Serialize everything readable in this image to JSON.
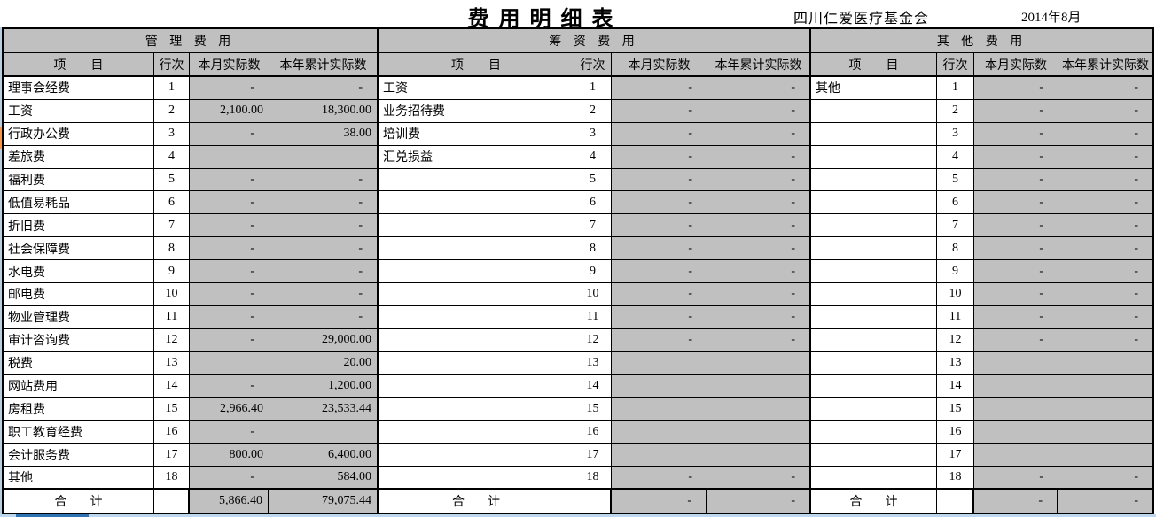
{
  "header": {
    "title": "费用明细表",
    "org": "四川仁爱医疗基金会",
    "period": "2014年8月"
  },
  "columns": {
    "item": "项　　目",
    "line": "行次",
    "month": "本月实际数",
    "ytd": "本年累计实际数"
  },
  "total_label": "合计",
  "colors": {
    "cell_gray": "#c0c0c0",
    "border_black": "#000000",
    "marker_orange": "#f79646",
    "edge_light_blue": "#b7cde4",
    "edge_bottom_blue": "#2e74b5"
  },
  "sections": [
    {
      "name": "管 理 费 用",
      "rows": [
        {
          "item": "理事会经费",
          "line": "1",
          "month": "-",
          "ytd": "-"
        },
        {
          "item": "工资",
          "line": "2",
          "month": "2,100.00",
          "ytd": "18,300.00"
        },
        {
          "item": "行政办公费",
          "line": "3",
          "month": "-",
          "ytd": "38.00"
        },
        {
          "item": "差旅费",
          "line": "4",
          "month": "",
          "ytd": ""
        },
        {
          "item": "福利费",
          "line": "5",
          "month": "-",
          "ytd": "-"
        },
        {
          "item": "低值易耗品",
          "line": "6",
          "month": "-",
          "ytd": "-"
        },
        {
          "item": "折旧费",
          "line": "7",
          "month": "-",
          "ytd": "-"
        },
        {
          "item": "社会保障费",
          "line": "8",
          "month": "-",
          "ytd": "-"
        },
        {
          "item": "水电费",
          "line": "9",
          "month": "-",
          "ytd": "-"
        },
        {
          "item": "邮电费",
          "line": "10",
          "month": "-",
          "ytd": "-"
        },
        {
          "item": "物业管理费",
          "line": "11",
          "month": "-",
          "ytd": "-"
        },
        {
          "item": "审计咨询费",
          "line": "12",
          "month": "-",
          "ytd": "29,000.00"
        },
        {
          "item": "税费",
          "line": "13",
          "month": "",
          "ytd": "20.00"
        },
        {
          "item": "网站费用",
          "line": "14",
          "month": "-",
          "ytd": "1,200.00"
        },
        {
          "item": "房租费",
          "line": "15",
          "month": "2,966.40",
          "ytd": "23,533.44"
        },
        {
          "item": "职工教育经费",
          "line": "16",
          "month": "-",
          "ytd": ""
        },
        {
          "item": "会计服务费",
          "line": "17",
          "month": "800.00",
          "ytd": "6,400.00"
        },
        {
          "item": "其他",
          "line": "18",
          "month": "-",
          "ytd": "584.00"
        }
      ],
      "total": {
        "month": "5,866.40",
        "ytd": "79,075.44"
      }
    },
    {
      "name": "筹 资 费 用",
      "rows": [
        {
          "item": "工资",
          "line": "1",
          "month": "-",
          "ytd": "-"
        },
        {
          "item": "业务招待费",
          "line": "2",
          "month": "-",
          "ytd": "-"
        },
        {
          "item": "培训费",
          "line": "3",
          "month": "-",
          "ytd": "-"
        },
        {
          "item": "汇兑损益",
          "line": "4",
          "month": "-",
          "ytd": "-"
        },
        {
          "item": "",
          "line": "5",
          "month": "-",
          "ytd": "-"
        },
        {
          "item": "",
          "line": "6",
          "month": "-",
          "ytd": "-"
        },
        {
          "item": "",
          "line": "7",
          "month": "-",
          "ytd": "-"
        },
        {
          "item": "",
          "line": "8",
          "month": "-",
          "ytd": "-"
        },
        {
          "item": "",
          "line": "9",
          "month": "-",
          "ytd": "-"
        },
        {
          "item": "",
          "line": "10",
          "month": "-",
          "ytd": "-"
        },
        {
          "item": "",
          "line": "11",
          "month": "-",
          "ytd": "-"
        },
        {
          "item": "",
          "line": "12",
          "month": "-",
          "ytd": "-"
        },
        {
          "item": "",
          "line": "13",
          "month": "",
          "ytd": ""
        },
        {
          "item": "",
          "line": "14",
          "month": "",
          "ytd": ""
        },
        {
          "item": "",
          "line": "15",
          "month": "",
          "ytd": ""
        },
        {
          "item": "",
          "line": "16",
          "month": "",
          "ytd": ""
        },
        {
          "item": "",
          "line": "17",
          "month": "",
          "ytd": ""
        },
        {
          "item": "",
          "line": "18",
          "month": "-",
          "ytd": "-"
        }
      ],
      "total": {
        "month": "-",
        "ytd": "-"
      }
    },
    {
      "name": "其 他 费 用",
      "rows": [
        {
          "item": "其他",
          "line": "1",
          "month": "-",
          "ytd": "-"
        },
        {
          "item": "",
          "line": "2",
          "month": "-",
          "ytd": "-"
        },
        {
          "item": "",
          "line": "3",
          "month": "-",
          "ytd": "-"
        },
        {
          "item": "",
          "line": "4",
          "month": "-",
          "ytd": "-"
        },
        {
          "item": "",
          "line": "5",
          "month": "-",
          "ytd": "-"
        },
        {
          "item": "",
          "line": "6",
          "month": "-",
          "ytd": "-"
        },
        {
          "item": "",
          "line": "7",
          "month": "-",
          "ytd": "-"
        },
        {
          "item": "",
          "line": "8",
          "month": "-",
          "ytd": "-"
        },
        {
          "item": "",
          "line": "9",
          "month": "-",
          "ytd": "-"
        },
        {
          "item": "",
          "line": "10",
          "month": "-",
          "ytd": "-"
        },
        {
          "item": "",
          "line": "11",
          "month": "-",
          "ytd": "-"
        },
        {
          "item": "",
          "line": "12",
          "month": "-",
          "ytd": "-"
        },
        {
          "item": "",
          "line": "13",
          "month": "",
          "ytd": ""
        },
        {
          "item": "",
          "line": "14",
          "month": "",
          "ytd": ""
        },
        {
          "item": "",
          "line": "15",
          "month": "",
          "ytd": ""
        },
        {
          "item": "",
          "line": "16",
          "month": "",
          "ytd": ""
        },
        {
          "item": "",
          "line": "17",
          "month": "",
          "ytd": ""
        },
        {
          "item": "",
          "line": "18",
          "month": "-",
          "ytd": "-"
        }
      ],
      "total": {
        "month": "-",
        "ytd": "-"
      }
    }
  ]
}
